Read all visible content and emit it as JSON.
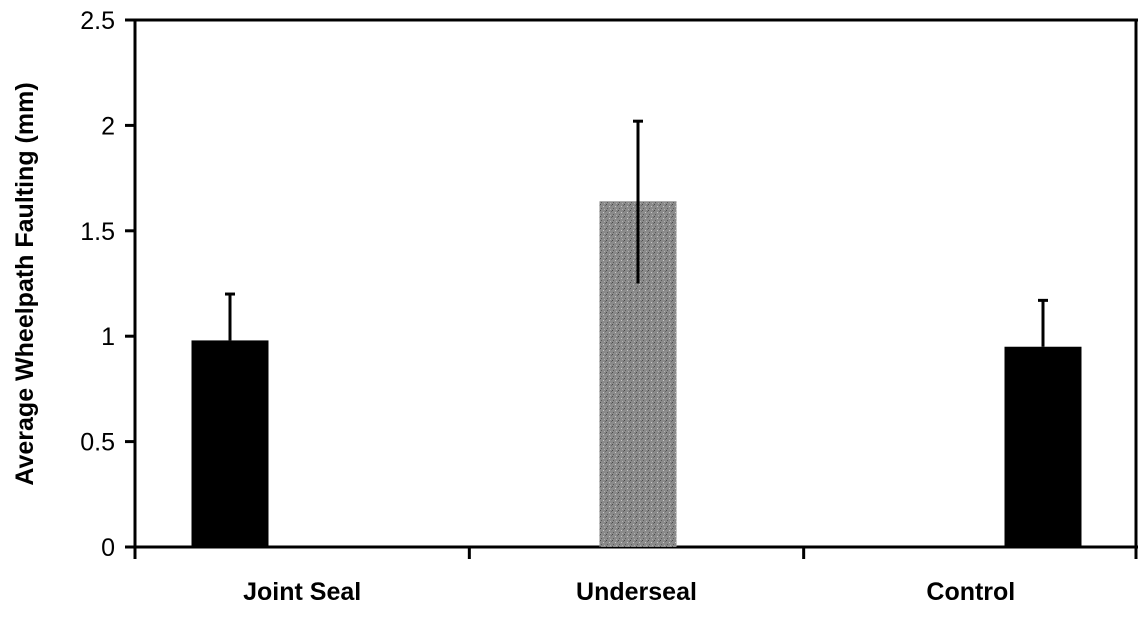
{
  "chart_data": {
    "type": "bar",
    "title": "",
    "xlabel": "",
    "ylabel": "Average Wheelpath Faulting (mm)",
    "categories": [
      "Joint Seal",
      "Underseal",
      "Control"
    ],
    "values": [
      0.98,
      1.64,
      0.95
    ],
    "error_bars": [
      {
        "low": 0.98,
        "high": 1.2
      },
      {
        "low": 1.25,
        "high": 2.02
      },
      {
        "low": 0.95,
        "high": 1.17
      }
    ],
    "ylim": [
      0,
      2.5
    ],
    "yticks": [
      "0",
      "0.5",
      "1",
      "1.5",
      "2",
      "2.5"
    ],
    "grid": false,
    "legend": "none",
    "bar_colors": [
      "#000000",
      "#8a8a8a",
      "#000000"
    ]
  }
}
